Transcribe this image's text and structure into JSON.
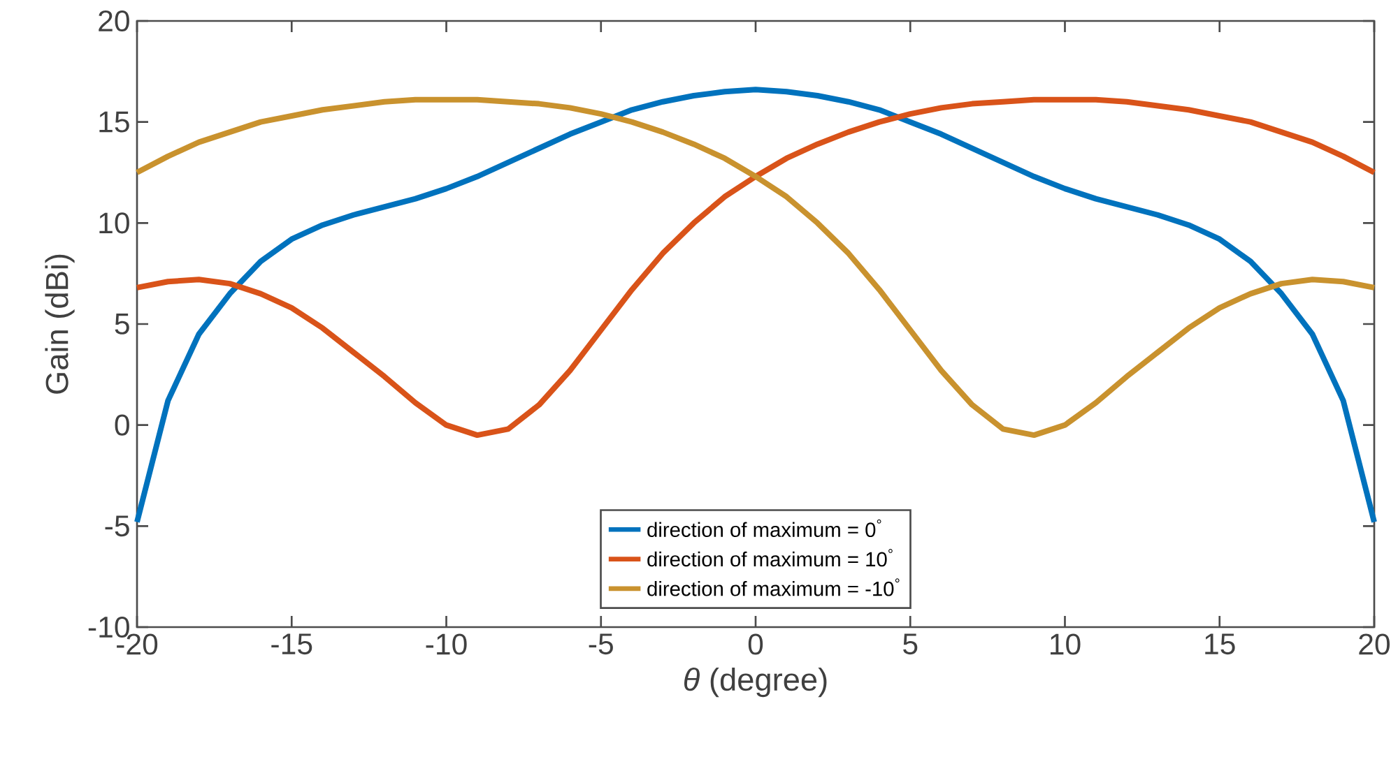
{
  "chart_data": {
    "type": "line",
    "xlabel": "*θ* (degree)",
    "ylabel": "Gain (dBi)",
    "x": [
      -20,
      -19,
      -18,
      -17,
      -16,
      -15,
      -14,
      -13,
      -12,
      -11,
      -10,
      -9,
      -8,
      -7,
      -6,
      -5,
      -4,
      -3,
      -2,
      -1,
      0,
      1,
      2,
      3,
      4,
      5,
      6,
      7,
      8,
      9,
      10,
      11,
      12,
      13,
      14,
      15,
      16,
      17,
      18,
      19,
      20
    ],
    "series": [
      {
        "name": "direction of maximum = 0$^{°}$",
        "color": "#0072bd",
        "values": [
          -4.8,
          1.2,
          4.5,
          6.5,
          8.1,
          9.2,
          9.9,
          10.4,
          10.8,
          11.2,
          11.7,
          12.3,
          13.0,
          13.7,
          14.4,
          15.0,
          15.6,
          16.0,
          16.3,
          16.5,
          16.6,
          16.5,
          16.3,
          16.0,
          15.6,
          15.0,
          14.4,
          13.7,
          13.0,
          12.3,
          11.7,
          11.2,
          10.8,
          10.4,
          9.9,
          9.2,
          8.1,
          6.5,
          4.5,
          1.2,
          -4.8
        ]
      },
      {
        "name": "direction of maximum = 10$^{°}$",
        "color": "#d95319",
        "values": [
          6.8,
          7.1,
          7.2,
          7.0,
          6.5,
          5.8,
          4.8,
          3.6,
          2.4,
          1.1,
          0.0,
          -0.5,
          -0.2,
          1.0,
          2.7,
          4.7,
          6.7,
          8.5,
          10.0,
          11.3,
          12.3,
          13.2,
          13.9,
          14.5,
          15.0,
          15.4,
          15.7,
          15.9,
          16.0,
          16.1,
          16.1,
          16.1,
          16.0,
          15.8,
          15.6,
          15.3,
          15.0,
          14.5,
          14.0,
          13.3,
          12.5
        ]
      },
      {
        "name": "direction of maximum = -10$^{°}$",
        "color": "#c9922e",
        "values": [
          12.5,
          13.3,
          14.0,
          14.5,
          15.0,
          15.3,
          15.6,
          15.8,
          16.0,
          16.1,
          16.1,
          16.1,
          16.0,
          15.9,
          15.7,
          15.4,
          15.0,
          14.5,
          13.9,
          13.2,
          12.3,
          11.3,
          10.0,
          8.5,
          6.7,
          4.7,
          2.7,
          1.0,
          -0.2,
          -0.5,
          0.0,
          1.1,
          2.4,
          3.6,
          4.8,
          5.8,
          6.5,
          7.0,
          7.2,
          7.1,
          6.8
        ]
      }
    ],
    "xlim": [
      -20,
      20
    ],
    "ylim": [
      -10,
      20
    ],
    "xticks": [
      -20,
      -15,
      -10,
      -5,
      0,
      5,
      10,
      15,
      20
    ],
    "yticks": [
      -10,
      -5,
      0,
      5,
      10,
      15,
      20
    ],
    "grid": false,
    "legend": "bottom",
    "marker": "none",
    "line_style": "solid"
  }
}
